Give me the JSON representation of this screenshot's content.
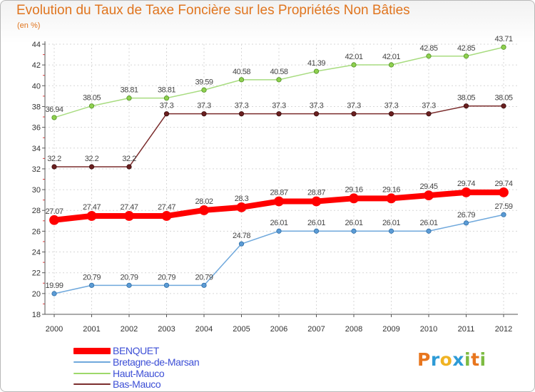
{
  "header": {
    "title": "Evolution du Taux de Taxe Foncière sur les Propriétés Non Bâties",
    "unit": "(en %)"
  },
  "logo": {
    "text": "Proxiti",
    "colors": [
      "#e8761e",
      "#2e9bd6",
      "#f0b323",
      "#2e9bd6",
      "#7dbb42",
      "#e8761e",
      "#7dbb42"
    ]
  },
  "chart_data": {
    "type": "line",
    "title": "Evolution du Taux de Taxe Foncière sur les Propriétés Non Bâties",
    "ylabel": "(en %)",
    "xlabel": "",
    "x": [
      "2000",
      "2001",
      "2002",
      "2003",
      "2004",
      "2005",
      "2006",
      "2007",
      "2008",
      "2009",
      "2010",
      "2011",
      "2012"
    ],
    "ylim": [
      18,
      44
    ],
    "yticks": [
      "18",
      "20",
      "22",
      "24",
      "26",
      "28",
      "30",
      "32",
      "34",
      "36",
      "38",
      "40",
      "42",
      "44"
    ],
    "grid": true,
    "legend_position": "bottom-left",
    "series": [
      {
        "name": "BENQUET",
        "color": "#ff0000",
        "values": [
          27.07,
          27.47,
          27.47,
          27.47,
          28.02,
          28.3,
          28.87,
          28.87,
          29.16,
          29.16,
          29.45,
          29.74,
          29.74
        ],
        "labels": [
          "27.07",
          "27.47",
          "27.47",
          "27.47",
          "28.02",
          "28.3",
          "28.87",
          "28.87",
          "29.16",
          "29.16",
          "29.45",
          "29.74",
          "29.74"
        ]
      },
      {
        "name": "Bretagne-de-Marsan",
        "color": "#6fa8dc",
        "values": [
          19.99,
          20.79,
          20.79,
          20.79,
          20.79,
          24.78,
          26.01,
          26.01,
          26.01,
          26.01,
          26.01,
          26.79,
          27.59
        ],
        "labels": [
          "19.99",
          "20.79",
          "20.79",
          "20.79",
          "20.79",
          "24.78",
          "26.01",
          "26.01",
          "26.01",
          "26.01",
          "26.01",
          "26.79",
          "27.59"
        ]
      },
      {
        "name": "Haut-Mauco",
        "color": "#9ed96a",
        "values": [
          36.94,
          38.05,
          38.81,
          38.81,
          39.59,
          40.58,
          40.58,
          41.39,
          42.01,
          42.01,
          42.85,
          42.85,
          43.71
        ],
        "labels": [
          "36.94",
          "38.05",
          "38.81",
          "38.81",
          "39.59",
          "40.58",
          "40.58",
          "41.39",
          "42.01",
          "42.01",
          "42.85",
          "42.85",
          "43.71"
        ]
      },
      {
        "name": "Bas-Mauco",
        "color": "#7b2d2d",
        "values": [
          32.2,
          32.2,
          32.2,
          37.3,
          37.3,
          37.3,
          37.3,
          37.3,
          37.3,
          37.3,
          37.3,
          38.05,
          38.05
        ],
        "labels": [
          "32.2",
          "32.2",
          "32.2",
          "37.3",
          "37.3",
          "37.3",
          "37.3",
          "37.3",
          "37.3",
          "37.3",
          "37.3",
          "38.05",
          "38.05"
        ]
      }
    ]
  }
}
